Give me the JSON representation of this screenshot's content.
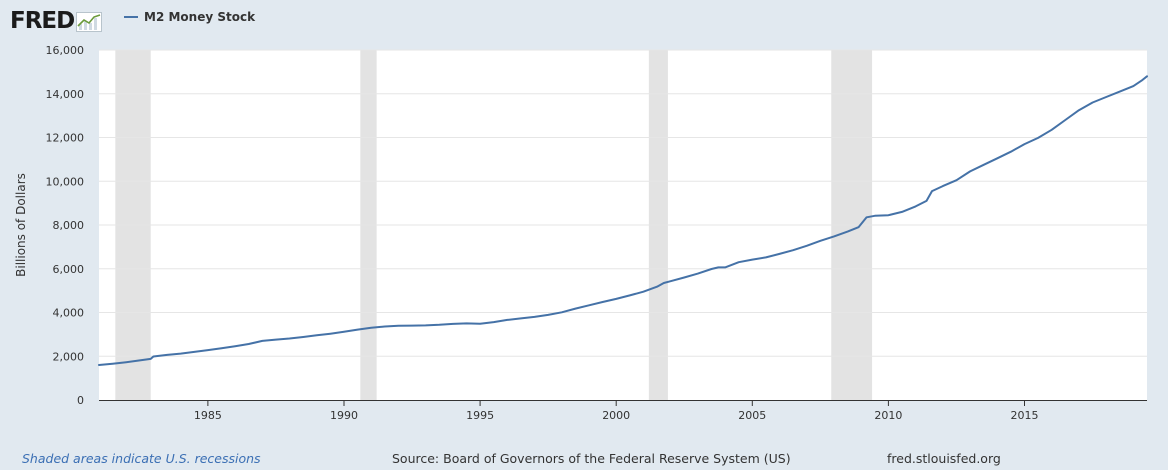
{
  "header": {
    "logo_text": "FRED",
    "logo_icon": "chart-line-icon"
  },
  "footer": {
    "recession_note": "Shaded areas indicate U.S. recessions",
    "source": "Source: Board of Governors of the Federal Reserve System (US)",
    "site": "fred.stlouisfed.org"
  },
  "colors": {
    "line": "#4572a7",
    "recession": "#e3e3e3",
    "background": "#e1e9f0",
    "plot": "#ffffff",
    "grid": "#e6e6e6"
  },
  "chart_data": {
    "type": "line",
    "title": "",
    "xlabel": "",
    "ylabel": "Billions of Dollars",
    "xlim": [
      1981.0,
      2019.5
    ],
    "ylim": [
      0,
      16000
    ],
    "yticks": [
      0,
      2000,
      4000,
      6000,
      8000,
      10000,
      12000,
      14000,
      16000
    ],
    "ytick_labels": [
      "0",
      "2,000",
      "4,000",
      "6,000",
      "8,000",
      "10,000",
      "12,000",
      "14,000",
      "16,000"
    ],
    "xticks": [
      1985,
      1990,
      1995,
      2000,
      2005,
      2010,
      2015
    ],
    "xtick_labels": [
      "1985",
      "1990",
      "1995",
      "2000",
      "2005",
      "2010",
      "2015"
    ],
    "grid": true,
    "legend_position": "top-left",
    "recessions": [
      [
        1981.6,
        1982.9
      ],
      [
        1990.6,
        1991.2
      ],
      [
        2001.2,
        2001.9
      ],
      [
        2007.9,
        2009.4
      ]
    ],
    "series": [
      {
        "name": "M2 Money Stock",
        "x": [
          1981.0,
          1981.5,
          1982.0,
          1982.5,
          1982.9,
          1983.0,
          1983.5,
          1984.0,
          1984.5,
          1985.0,
          1985.5,
          1986.0,
          1986.5,
          1987.0,
          1987.5,
          1988.0,
          1988.5,
          1989.0,
          1989.5,
          1990.0,
          1990.5,
          1991.0,
          1991.5,
          1992.0,
          1992.5,
          1993.0,
          1993.5,
          1994.0,
          1994.5,
          1995.0,
          1995.5,
          1996.0,
          1996.5,
          1997.0,
          1997.5,
          1998.0,
          1998.5,
          1999.0,
          1999.5,
          2000.0,
          2000.5,
          2001.0,
          2001.5,
          2001.75,
          2002.0,
          2002.5,
          2003.0,
          2003.5,
          2003.75,
          2004.0,
          2004.5,
          2005.0,
          2005.5,
          2006.0,
          2006.5,
          2007.0,
          2007.5,
          2008.0,
          2008.5,
          2008.9,
          2009.2,
          2009.5,
          2010.0,
          2010.5,
          2011.0,
          2011.4,
          2011.6,
          2012.0,
          2012.5,
          2013.0,
          2013.5,
          2014.0,
          2014.5,
          2015.0,
          2015.5,
          2016.0,
          2016.5,
          2017.0,
          2017.5,
          2018.0,
          2018.5,
          2019.0,
          2019.3,
          2019.5
        ],
        "values": [
          1600,
          1660,
          1730,
          1810,
          1880,
          1990,
          2060,
          2120,
          2200,
          2280,
          2370,
          2460,
          2560,
          2700,
          2760,
          2810,
          2880,
          2960,
          3030,
          3120,
          3220,
          3300,
          3360,
          3390,
          3400,
          3410,
          3440,
          3480,
          3500,
          3490,
          3560,
          3660,
          3730,
          3800,
          3890,
          4010,
          4180,
          4330,
          4480,
          4620,
          4780,
          4950,
          5180,
          5350,
          5430,
          5600,
          5780,
          5990,
          6060,
          6060,
          6300,
          6420,
          6520,
          6680,
          6850,
          7050,
          7280,
          7480,
          7700,
          7900,
          8350,
          8420,
          8450,
          8600,
          8850,
          9100,
          9550,
          9780,
          10050,
          10450,
          10750,
          11050,
          11350,
          11700,
          11980,
          12350,
          12800,
          13250,
          13600,
          13850,
          14100,
          14350,
          14600,
          14800
        ]
      }
    ]
  }
}
